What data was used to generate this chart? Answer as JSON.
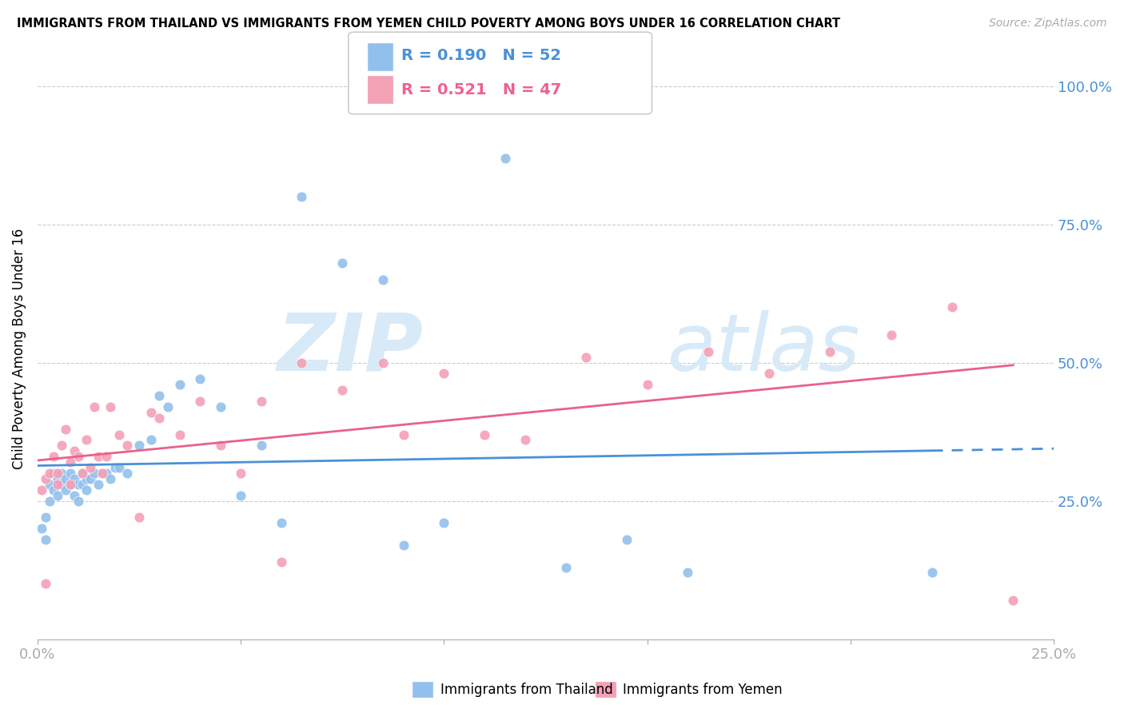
{
  "title": "IMMIGRANTS FROM THAILAND VS IMMIGRANTS FROM YEMEN CHILD POVERTY AMONG BOYS UNDER 16 CORRELATION CHART",
  "source": "Source: ZipAtlas.com",
  "ylabel": "Child Poverty Among Boys Under 16",
  "xlim": [
    0.0,
    0.25
  ],
  "ylim": [
    0.0,
    1.05
  ],
  "thailand_color": "#92c0ed",
  "yemen_color": "#f4a0b5",
  "thailand_line_color": "#4a90d9",
  "yemen_line_color": "#e8628a",
  "thailand_R": 0.19,
  "thailand_N": 52,
  "yemen_R": 0.521,
  "yemen_N": 47,
  "watermark": "ZIPatlas",
  "thailand_scatter_x": [
    0.001,
    0.002,
    0.002,
    0.003,
    0.003,
    0.004,
    0.004,
    0.005,
    0.005,
    0.006,
    0.006,
    0.007,
    0.007,
    0.008,
    0.008,
    0.009,
    0.009,
    0.01,
    0.01,
    0.011,
    0.011,
    0.012,
    0.012,
    0.013,
    0.014,
    0.015,
    0.016,
    0.017,
    0.018,
    0.019,
    0.02,
    0.022,
    0.025,
    0.028,
    0.03,
    0.032,
    0.035,
    0.04,
    0.045,
    0.05,
    0.055,
    0.06,
    0.065,
    0.075,
    0.085,
    0.09,
    0.1,
    0.115,
    0.13,
    0.145,
    0.16,
    0.22
  ],
  "thailand_scatter_y": [
    0.2,
    0.18,
    0.22,
    0.25,
    0.28,
    0.27,
    0.3,
    0.26,
    0.29,
    0.28,
    0.3,
    0.27,
    0.29,
    0.28,
    0.3,
    0.26,
    0.29,
    0.25,
    0.28,
    0.28,
    0.3,
    0.27,
    0.29,
    0.29,
    0.3,
    0.28,
    0.3,
    0.3,
    0.29,
    0.31,
    0.31,
    0.3,
    0.35,
    0.36,
    0.44,
    0.42,
    0.46,
    0.47,
    0.42,
    0.26,
    0.35,
    0.21,
    0.8,
    0.68,
    0.65,
    0.17,
    0.21,
    0.87,
    0.13,
    0.18,
    0.12,
    0.12
  ],
  "yemen_scatter_x": [
    0.001,
    0.002,
    0.002,
    0.003,
    0.004,
    0.005,
    0.005,
    0.006,
    0.007,
    0.008,
    0.008,
    0.009,
    0.01,
    0.011,
    0.012,
    0.013,
    0.014,
    0.015,
    0.016,
    0.017,
    0.018,
    0.02,
    0.022,
    0.025,
    0.028,
    0.03,
    0.035,
    0.04,
    0.045,
    0.05,
    0.055,
    0.06,
    0.065,
    0.075,
    0.085,
    0.09,
    0.1,
    0.11,
    0.12,
    0.135,
    0.15,
    0.165,
    0.18,
    0.195,
    0.21,
    0.225,
    0.24
  ],
  "yemen_scatter_y": [
    0.27,
    0.1,
    0.29,
    0.3,
    0.33,
    0.28,
    0.3,
    0.35,
    0.38,
    0.32,
    0.28,
    0.34,
    0.33,
    0.3,
    0.36,
    0.31,
    0.42,
    0.33,
    0.3,
    0.33,
    0.42,
    0.37,
    0.35,
    0.22,
    0.41,
    0.4,
    0.37,
    0.43,
    0.35,
    0.3,
    0.43,
    0.14,
    0.5,
    0.45,
    0.5,
    0.37,
    0.48,
    0.37,
    0.36,
    0.51,
    0.46,
    0.52,
    0.48,
    0.52,
    0.55,
    0.6,
    0.07
  ]
}
